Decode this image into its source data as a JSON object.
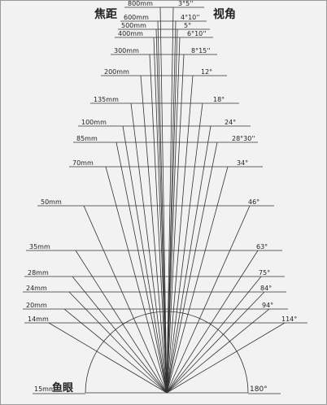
{
  "header": {
    "focal_title": "焦距",
    "angle_title": "视角"
  },
  "rows": [
    {
      "focal": "800mm",
      "angle": "3°5''"
    },
    {
      "focal": "600mm",
      "angle": "4°10''"
    },
    {
      "focal": "500mm",
      "angle": "5°"
    },
    {
      "focal": "400mm",
      "angle": "6°10''"
    },
    {
      "focal": "300mm",
      "angle": "8°15''"
    },
    {
      "focal": "200mm",
      "angle": "12°"
    },
    {
      "focal": "135mm",
      "angle": "18°"
    },
    {
      "focal": "100mm",
      "angle": "24°"
    },
    {
      "focal": "85mm",
      "angle": "28°30''"
    },
    {
      "focal": "70mm",
      "angle": "34°"
    },
    {
      "focal": "50mm",
      "angle": "46°"
    },
    {
      "focal": "35mm",
      "angle": "63°"
    },
    {
      "focal": "28mm",
      "angle": "75°"
    },
    {
      "focal": "24mm",
      "angle": "84°"
    },
    {
      "focal": "20mm",
      "angle": "94°"
    },
    {
      "focal": "14mm",
      "angle": "114°"
    }
  ],
  "fisheye": {
    "focal": "15mm",
    "name": "鱼眼",
    "angle": "180°"
  }
}
